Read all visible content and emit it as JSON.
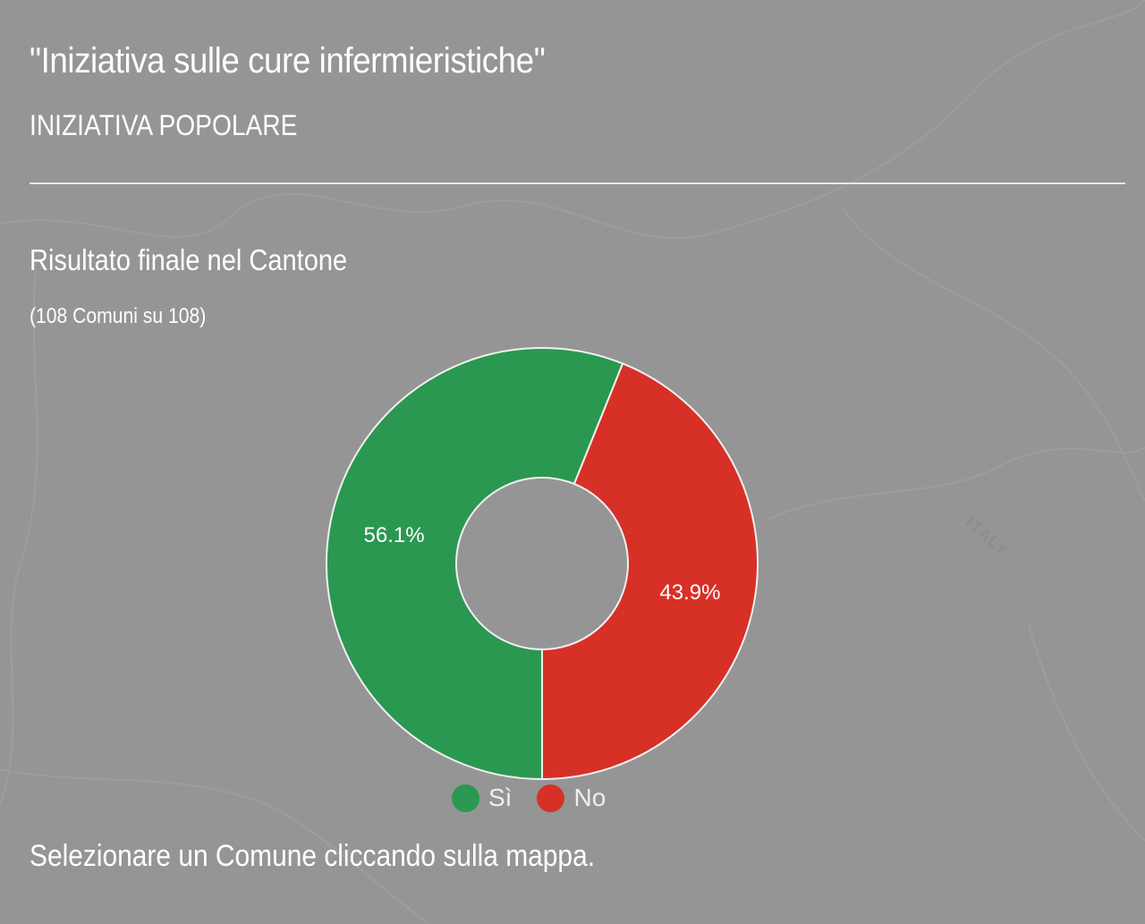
{
  "header": {
    "title": "\"Iniziativa sulle cure infermieristiche\"",
    "subtitle": "INIZIATIVA POPOLARE"
  },
  "section": {
    "title": "Risultato finale nel Cantone",
    "count": "(108 Comuni su 108)"
  },
  "map": {
    "label_italy": "ITALY"
  },
  "chart_data": {
    "type": "pie",
    "variant": "donut",
    "categories": [
      "Sì",
      "No"
    ],
    "values": [
      56.1,
      43.9
    ],
    "labels": [
      "56.1%",
      "43.9%"
    ],
    "colors": [
      "#2a9850",
      "#d73027"
    ],
    "legend": "bottom"
  },
  "footer": {
    "hint": "Selezionare un Comune cliccando sulla mappa."
  }
}
